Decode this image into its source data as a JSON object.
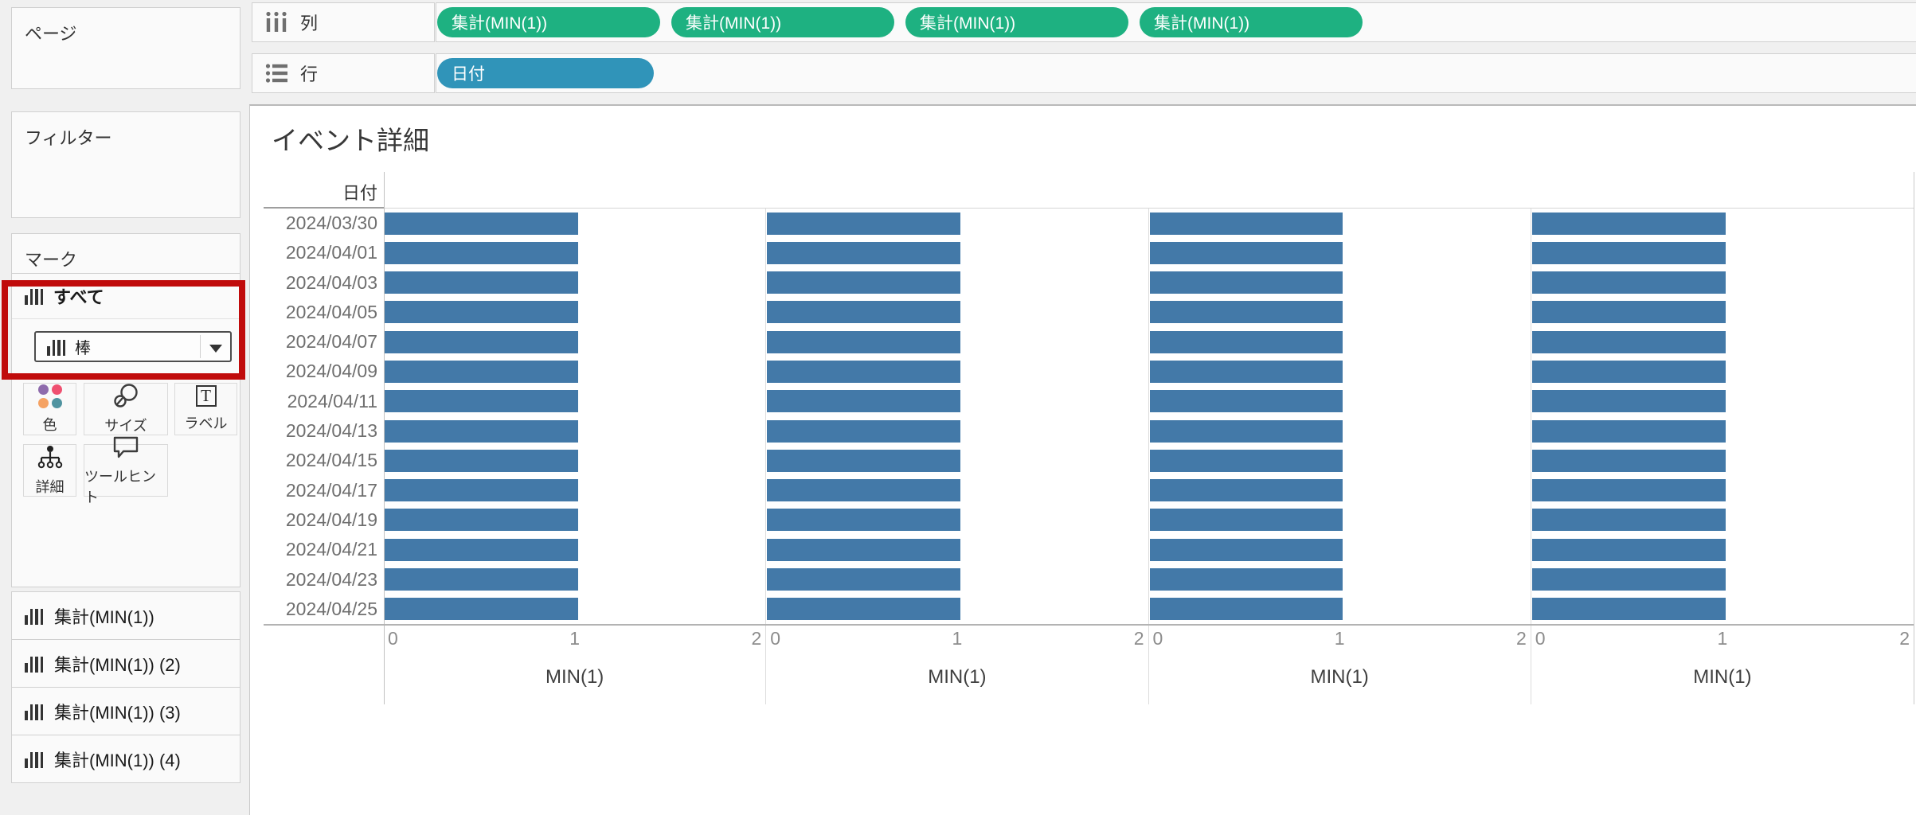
{
  "sidebar": {
    "pages_label": "ページ",
    "filters_label": "フィルター",
    "marks_label": "マーク",
    "marks_all_label": "すべて",
    "mark_type": {
      "label": "棒",
      "icon": "bar-chart-icon"
    },
    "mark_buttons": [
      {
        "label": "色",
        "icon": "color-dots-icon"
      },
      {
        "label": "サイズ",
        "icon": "size-circles-icon"
      },
      {
        "label": "ラベル",
        "icon": "text-label-icon"
      },
      {
        "label": "詳細",
        "icon": "detail-tree-icon"
      },
      {
        "label": "ツールヒント",
        "icon": "tooltip-bubble-icon"
      }
    ],
    "aggregates": [
      "集計(MIN(1))",
      "集計(MIN(1)) (2)",
      "集計(MIN(1)) (3)",
      "集計(MIN(1)) (4)"
    ]
  },
  "shelves": {
    "columns_label": "列",
    "rows_label": "行",
    "columns_pills": [
      "集計(MIN(1))",
      "集計(MIN(1))",
      "集計(MIN(1))",
      "集計(MIN(1))"
    ],
    "rows_pills": [
      "日付"
    ]
  },
  "colors": {
    "green_pill": "#1EB181",
    "blue_pill": "#3094B9",
    "bar": "#4379A8",
    "highlight_red": "#C00B0B",
    "color_dots": [
      "#8E6BAC",
      "#EF5070",
      "#F5A263",
      "#4F93A0"
    ]
  },
  "chart_data": {
    "type": "bar",
    "orientation": "horizontal",
    "title": "イベント詳細",
    "row_header": "日付",
    "categories": [
      "2024/03/30",
      "2024/04/01",
      "2024/04/03",
      "2024/04/05",
      "2024/04/07",
      "2024/04/09",
      "2024/04/11",
      "2024/04/13",
      "2024/04/15",
      "2024/04/17",
      "2024/04/19",
      "2024/04/21",
      "2024/04/23",
      "2024/04/25"
    ],
    "series": [
      {
        "name": "MIN(1)",
        "values": [
          1,
          1,
          1,
          1,
          1,
          1,
          1,
          1,
          1,
          1,
          1,
          1,
          1,
          1
        ]
      },
      {
        "name": "MIN(1)",
        "values": [
          1,
          1,
          1,
          1,
          1,
          1,
          1,
          1,
          1,
          1,
          1,
          1,
          1,
          1
        ]
      },
      {
        "name": "MIN(1)",
        "values": [
          1,
          1,
          1,
          1,
          1,
          1,
          1,
          1,
          1,
          1,
          1,
          1,
          1,
          1
        ]
      },
      {
        "name": "MIN(1)",
        "values": [
          1,
          1,
          1,
          1,
          1,
          1,
          1,
          1,
          1,
          1,
          1,
          1,
          1,
          1
        ]
      }
    ],
    "xlabel": "MIN(1)",
    "xlim": [
      0,
      2
    ],
    "xticks": [
      "0",
      "1",
      "2"
    ],
    "legend": "none",
    "grid": "panel-borders-only"
  }
}
